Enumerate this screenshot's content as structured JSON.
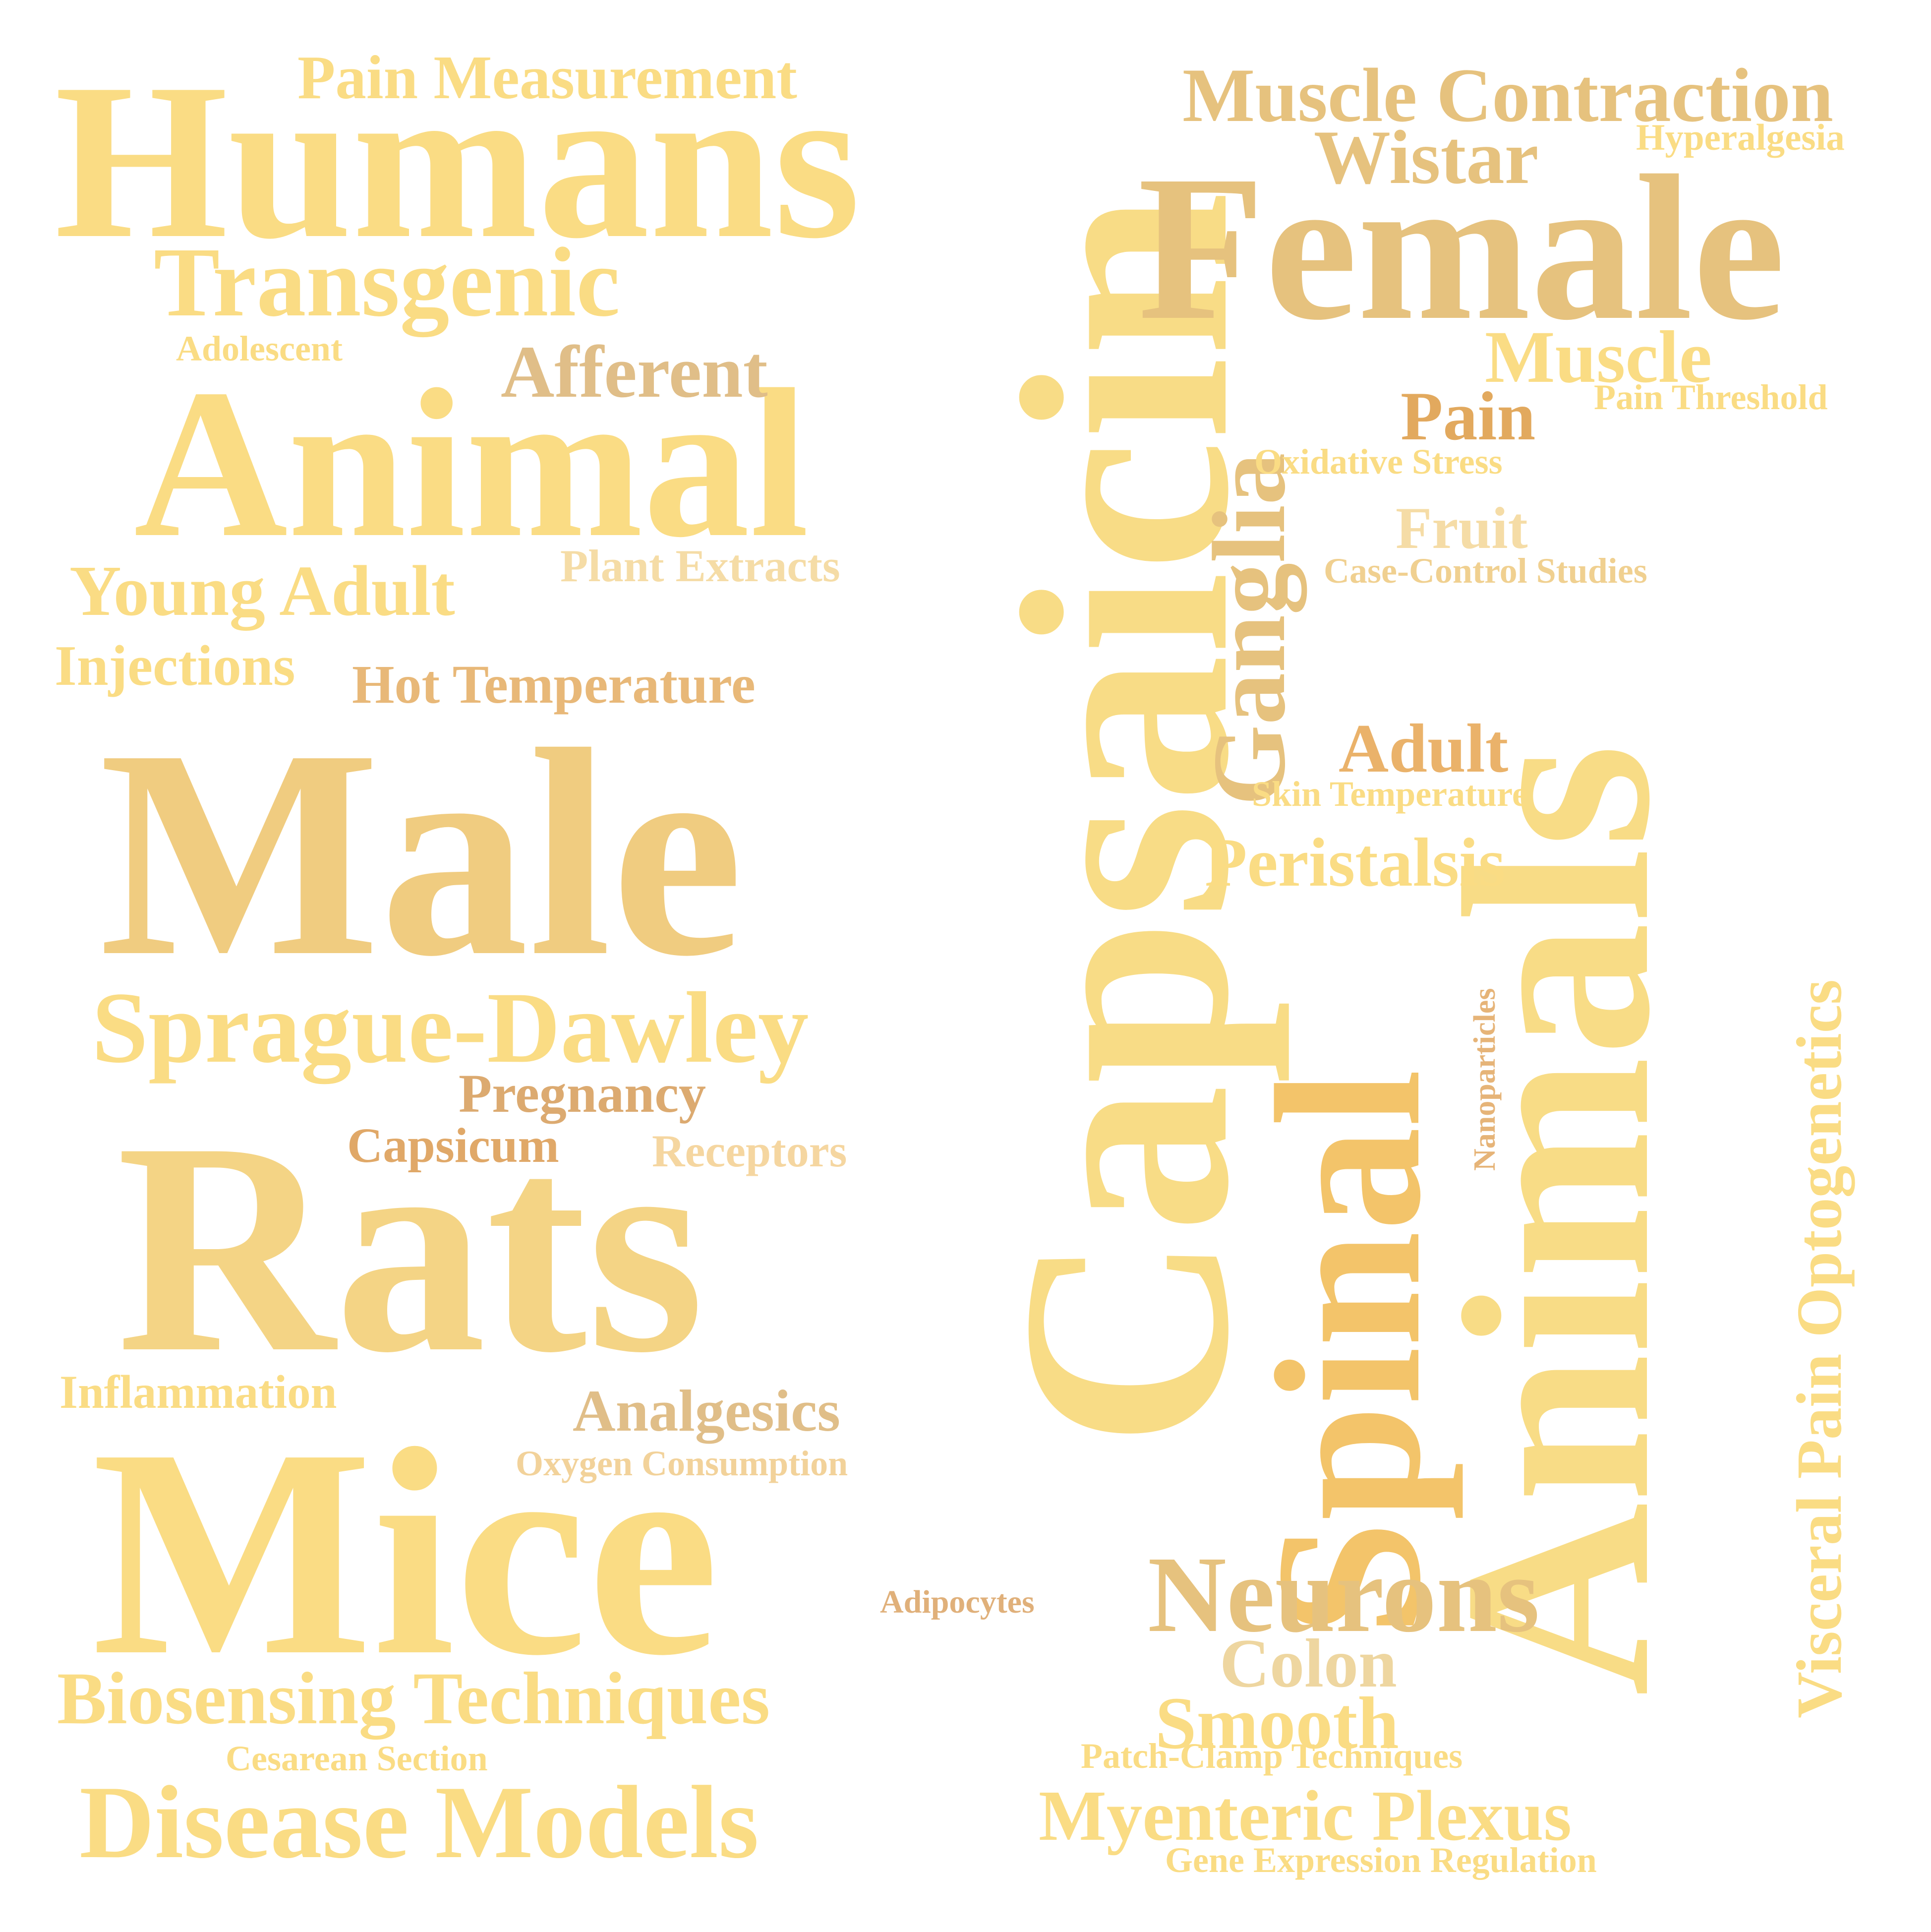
{
  "words": [
    {
      "text": "Capsaicin",
      "color": "#f8dc86",
      "orientation": "vertical"
    },
    {
      "text": "Animals",
      "color": "#f8dc86",
      "orientation": "vertical"
    },
    {
      "text": "Humans",
      "color": "#fadc84",
      "orientation": "horizontal"
    },
    {
      "text": "Female",
      "color": "#e6c27e",
      "orientation": "horizontal"
    },
    {
      "text": "Animal",
      "color": "#fadc84",
      "orientation": "horizontal"
    },
    {
      "text": "Male",
      "color": "#f0cc80",
      "orientation": "horizontal"
    },
    {
      "text": "Rats",
      "color": "#f4d485",
      "orientation": "horizontal"
    },
    {
      "text": "Mice",
      "color": "#fadc84",
      "orientation": "horizontal"
    },
    {
      "text": "Spinal",
      "color": "#f3c46a",
      "orientation": "vertical"
    },
    {
      "text": "Ganglia",
      "color": "#e6c27e",
      "orientation": "vertical"
    },
    {
      "text": "Neurons",
      "color": "#e6c27e",
      "orientation": "horizontal"
    },
    {
      "text": "Muscle Contraction",
      "color": "#e6c27e",
      "orientation": "horizontal"
    },
    {
      "text": "Wistar",
      "color": "#e6c27e",
      "orientation": "horizontal"
    },
    {
      "text": "Hyperalgesia",
      "color": "#fadc84",
      "orientation": "horizontal"
    },
    {
      "text": "Pain Measurement",
      "color": "#fadc84",
      "orientation": "horizontal"
    },
    {
      "text": "Transgenic",
      "color": "#fadc84",
      "orientation": "horizontal"
    },
    {
      "text": "Adolescent",
      "color": "#fadc84",
      "orientation": "horizontal"
    },
    {
      "text": "Afferent",
      "color": "#e0be88",
      "orientation": "horizontal"
    },
    {
      "text": "Muscle",
      "color": "#fadc84",
      "orientation": "horizontal"
    },
    {
      "text": "Pain",
      "color": "#e2a95e",
      "orientation": "horizontal"
    },
    {
      "text": "Pain Threshold",
      "color": "#fadc84",
      "orientation": "horizontal"
    },
    {
      "text": "Oxidative Stress",
      "color": "#fadc84",
      "orientation": "horizontal"
    },
    {
      "text": "Fruit",
      "color": "#f5dca6",
      "orientation": "horizontal"
    },
    {
      "text": "Case-Control Studies",
      "color": "#f0d090",
      "orientation": "horizontal"
    },
    {
      "text": "Young Adult",
      "color": "#fadc84",
      "orientation": "horizontal"
    },
    {
      "text": "Plant Extracts",
      "color": "#f5dca6",
      "orientation": "horizontal"
    },
    {
      "text": "Injections",
      "color": "#fadc84",
      "orientation": "horizontal"
    },
    {
      "text": "Hot Temperature",
      "color": "#e8b878",
      "orientation": "horizontal"
    },
    {
      "text": "Adult",
      "color": "#eab26a",
      "orientation": "horizontal"
    },
    {
      "text": "Skin Temperature",
      "color": "#fadc84",
      "orientation": "horizontal"
    },
    {
      "text": "Peristalsis",
      "color": "#fadc84",
      "orientation": "horizontal"
    },
    {
      "text": "Nanoparticles",
      "color": "#e6b478",
      "orientation": "vertical"
    },
    {
      "text": "Visceral Pain Optogenetics",
      "color": "#fadc84",
      "orientation": "vertical"
    },
    {
      "text": "Sprague-Dawley",
      "color": "#fadc84",
      "orientation": "horizontal"
    },
    {
      "text": "Pregnancy",
      "color": "#dcaa70",
      "orientation": "horizontal"
    },
    {
      "text": "Capsicum",
      "color": "#e0a868",
      "orientation": "horizontal"
    },
    {
      "text": "Receptors",
      "color": "#f5d6a0",
      "orientation": "horizontal"
    },
    {
      "text": "Inflammation",
      "color": "#fadc84",
      "orientation": "horizontal"
    },
    {
      "text": "Analgesics",
      "color": "#e0be88",
      "orientation": "horizontal"
    },
    {
      "text": "Oxygen Consumption",
      "color": "#f2d29a",
      "orientation": "horizontal"
    },
    {
      "text": "Adipocytes",
      "color": "#e0b07a",
      "orientation": "horizontal"
    },
    {
      "text": "Colon",
      "color": "#eed6a0",
      "orientation": "horizontal"
    },
    {
      "text": "Smooth",
      "color": "#fadc84",
      "orientation": "horizontal"
    },
    {
      "text": "Biosensing Techniques",
      "color": "#fadc84",
      "orientation": "horizontal"
    },
    {
      "text": "Cesarean Section",
      "color": "#fadc84",
      "orientation": "horizontal"
    },
    {
      "text": "Patch-Clamp Techniques",
      "color": "#fadc84",
      "orientation": "horizontal"
    },
    {
      "text": "Disease Models",
      "color": "#fadc84",
      "orientation": "horizontal"
    },
    {
      "text": "Myenteric Plexus",
      "color": "#fadc84",
      "orientation": "horizontal"
    },
    {
      "text": "Gene Expression Regulation",
      "color": "#fadc84",
      "orientation": "horizontal"
    }
  ]
}
